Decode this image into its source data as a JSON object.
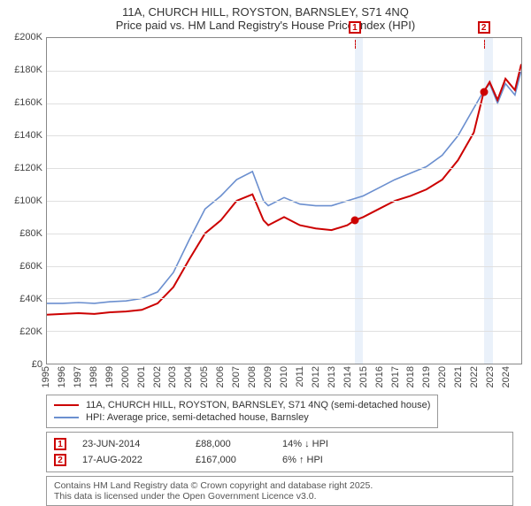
{
  "title": {
    "line1": "11A, CHURCH HILL, ROYSTON, BARNSLEY, S71 4NQ",
    "line2": "Price paid vs. HM Land Registry's House Price Index (HPI)"
  },
  "chart": {
    "type": "line",
    "background_color": "#ffffff",
    "grid_color": "#e0e0e0",
    "axis_color": "#888888",
    "y": {
      "min": 0,
      "max": 200000,
      "tick_step": 20000,
      "ticks": [
        "£0",
        "£20K",
        "£40K",
        "£60K",
        "£80K",
        "£100K",
        "£120K",
        "£140K",
        "£160K",
        "£180K",
        "£200K"
      ],
      "label_fontsize": 11,
      "label_color": "#444444"
    },
    "x": {
      "min": 1995,
      "max": 2025,
      "ticks": [
        1995,
        1996,
        1997,
        1998,
        1999,
        2000,
        2001,
        2002,
        2003,
        2004,
        2005,
        2006,
        2007,
        2008,
        2009,
        2010,
        2011,
        2012,
        2013,
        2014,
        2015,
        2016,
        2017,
        2018,
        2019,
        2020,
        2021,
        2022,
        2023,
        2024
      ],
      "label_fontsize": 11,
      "label_color": "#444444"
    },
    "shaded_bands": [
      {
        "from": 2014.47,
        "to": 2015.0,
        "color": "#eaf1fa"
      },
      {
        "from": 2022.63,
        "to": 2023.2,
        "color": "#eaf1fa"
      }
    ],
    "series": [
      {
        "name": "hpi",
        "label": "HPI: Average price, semi-detached house, Barnsley",
        "color": "#6b8fcf",
        "line_width": 1.6,
        "data": [
          [
            1995,
            37000
          ],
          [
            1996,
            37000
          ],
          [
            1997,
            37500
          ],
          [
            1998,
            37000
          ],
          [
            1999,
            38000
          ],
          [
            2000,
            38500
          ],
          [
            2001,
            40000
          ],
          [
            2002,
            44000
          ],
          [
            2003,
            56000
          ],
          [
            2004,
            76000
          ],
          [
            2005,
            95000
          ],
          [
            2006,
            103000
          ],
          [
            2007,
            113000
          ],
          [
            2008,
            118000
          ],
          [
            2008.7,
            100000
          ],
          [
            2009,
            97000
          ],
          [
            2010,
            102000
          ],
          [
            2011,
            98000
          ],
          [
            2012,
            97000
          ],
          [
            2013,
            97000
          ],
          [
            2014,
            100000
          ],
          [
            2015,
            103000
          ],
          [
            2016,
            108000
          ],
          [
            2017,
            113000
          ],
          [
            2018,
            117000
          ],
          [
            2019,
            121000
          ],
          [
            2020,
            128000
          ],
          [
            2021,
            140000
          ],
          [
            2022,
            157000
          ],
          [
            2022.6,
            167000
          ],
          [
            2023,
            172000
          ],
          [
            2023.5,
            160000
          ],
          [
            2024,
            172000
          ],
          [
            2024.6,
            165000
          ],
          [
            2025,
            180000
          ]
        ]
      },
      {
        "name": "price-paid",
        "label": "11A, CHURCH HILL, ROYSTON, BARNSLEY, S71 4NQ (semi-detached house)",
        "color": "#cc0000",
        "line_width": 2,
        "data": [
          [
            1995,
            30000
          ],
          [
            1996,
            30500
          ],
          [
            1997,
            31000
          ],
          [
            1998,
            30500
          ],
          [
            1999,
            31500
          ],
          [
            2000,
            32000
          ],
          [
            2001,
            33000
          ],
          [
            2002,
            37000
          ],
          [
            2003,
            47000
          ],
          [
            2004,
            64000
          ],
          [
            2005,
            80000
          ],
          [
            2006,
            88000
          ],
          [
            2007,
            100000
          ],
          [
            2008,
            104000
          ],
          [
            2008.7,
            88000
          ],
          [
            2009,
            85000
          ],
          [
            2010,
            90000
          ],
          [
            2011,
            85000
          ],
          [
            2012,
            83000
          ],
          [
            2013,
            82000
          ],
          [
            2014,
            85000
          ],
          [
            2014.47,
            88000
          ],
          [
            2015,
            90000
          ],
          [
            2016,
            95000
          ],
          [
            2017,
            100000
          ],
          [
            2018,
            103000
          ],
          [
            2019,
            107000
          ],
          [
            2020,
            113000
          ],
          [
            2021,
            125000
          ],
          [
            2022,
            142000
          ],
          [
            2022.63,
            167000
          ],
          [
            2023,
            173000
          ],
          [
            2023.5,
            162000
          ],
          [
            2024,
            175000
          ],
          [
            2024.6,
            168000
          ],
          [
            2025,
            184000
          ]
        ]
      }
    ],
    "sale_markers": [
      {
        "n": "1",
        "year": 2014.47,
        "price": 88000
      },
      {
        "n": "2",
        "year": 2022.63,
        "price": 167000
      }
    ]
  },
  "legend": {
    "series": [
      {
        "color": "#cc0000",
        "label": "11A, CHURCH HILL, ROYSTON, BARNSLEY, S71 4NQ (semi-detached house)"
      },
      {
        "color": "#6b8fcf",
        "label": "HPI: Average price, semi-detached house, Barnsley"
      }
    ]
  },
  "sales": [
    {
      "n": "1",
      "date": "23-JUN-2014",
      "price": "£88,000",
      "pct": "14% ↓ HPI"
    },
    {
      "n": "2",
      "date": "17-AUG-2022",
      "price": "£167,000",
      "pct": "6% ↑ HPI"
    }
  ],
  "footer": {
    "line1": "Contains HM Land Registry data © Crown copyright and database right 2025.",
    "line2": "This data is licensed under the Open Government Licence v3.0."
  }
}
